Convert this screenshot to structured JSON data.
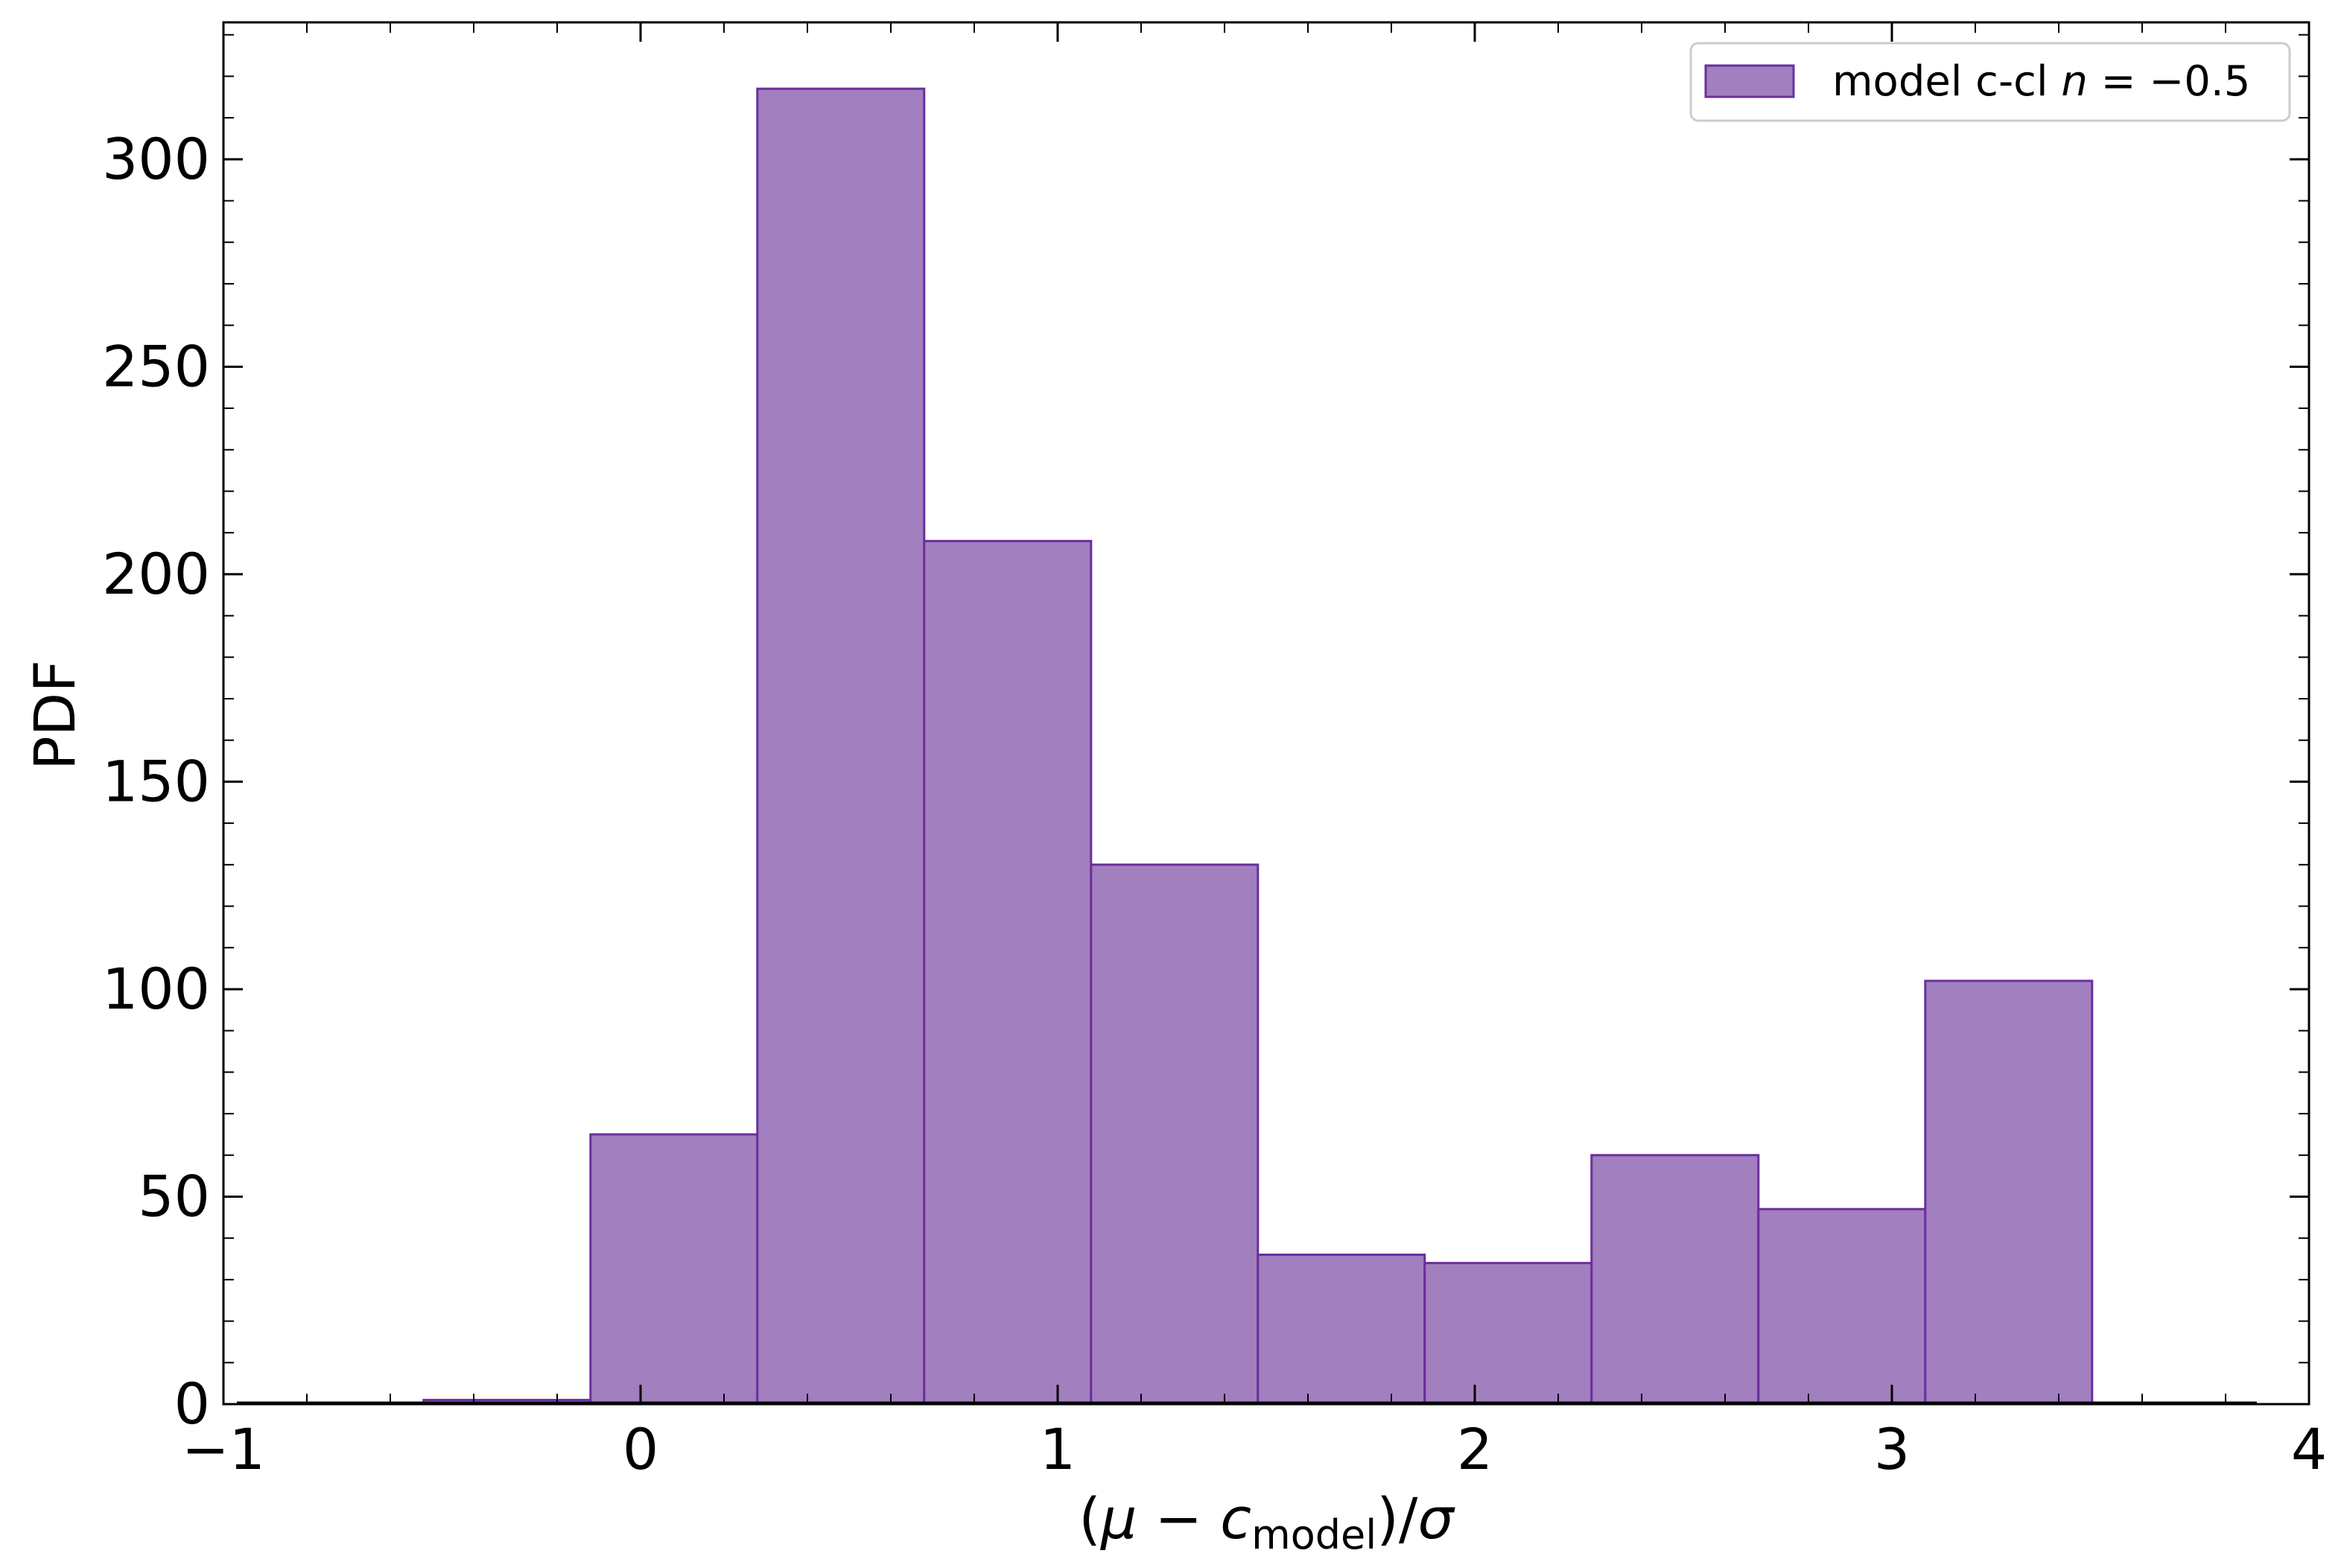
{
  "chart_data": {
    "type": "bar",
    "title": "",
    "xlabel": "(μ − c_model)/σ",
    "xlabel_parts": {
      "open": "(",
      "mu": "μ",
      "minus": " − c",
      "sub": "model",
      "close": ")/",
      "sigma": "σ"
    },
    "ylabel": "PDF",
    "xlim": [
      -1,
      4
    ],
    "ylim": [
      0,
      333
    ],
    "xticks": [
      -1,
      0,
      1,
      2,
      3,
      4
    ],
    "xtick_labels": [
      "−1",
      "0",
      "1",
      "2",
      "3",
      "4"
    ],
    "yticks": [
      0,
      50,
      100,
      150,
      200,
      250,
      300
    ],
    "ytick_labels": [
      "0",
      "50",
      "100",
      "150",
      "200",
      "250",
      "300"
    ],
    "grid": false,
    "legend_position": "top-right",
    "series": [
      {
        "name": "model c-cl n = −0.5",
        "legend_parts": {
          "text": "model c-cl ",
          "n": "n",
          "rest": " = −0.5"
        },
        "color": "#a27fbf",
        "edge_color": "#6a2f9c",
        "bin_edges": [
          -0.52,
          -0.12,
          0.28,
          0.68,
          1.08,
          1.48,
          1.88,
          2.28,
          2.68,
          3.08,
          3.48
        ],
        "values": [
          1,
          65,
          317,
          208,
          130,
          36,
          34,
          60,
          47,
          102
        ]
      }
    ]
  }
}
